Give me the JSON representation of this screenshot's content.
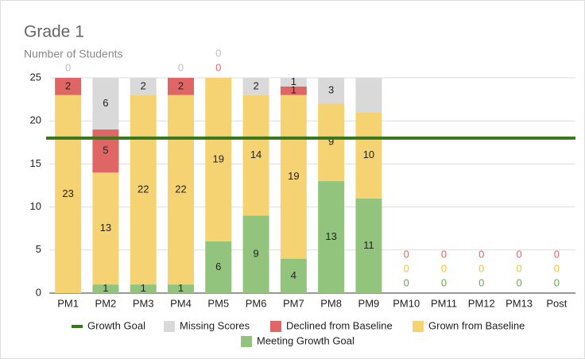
{
  "chart_data": {
    "type": "stacked_bar",
    "title": "Grade 1",
    "subtitle": "Number of Students",
    "categories": [
      "PM1",
      "PM2",
      "PM3",
      "PM4",
      "PM5",
      "PM6",
      "PM7",
      "PM8",
      "PM9",
      "PM10",
      "PM11",
      "PM12",
      "PM13",
      "Post"
    ],
    "series": [
      {
        "name": "Meeting Growth Goal",
        "color": "#93c47d",
        "label_color": "#6aa84f",
        "values": [
          0,
          1,
          1,
          1,
          6,
          9,
          4,
          13,
          11,
          0,
          0,
          0,
          0,
          0
        ]
      },
      {
        "name": "Grown from Baseline",
        "color": "#f6d372",
        "label_color": "#f1c232",
        "values": [
          23,
          13,
          22,
          22,
          19,
          14,
          19,
          9,
          10,
          0,
          0,
          0,
          0,
          0
        ]
      },
      {
        "name": "Declined from Baseline",
        "color": "#e06666",
        "label_color": "#e06666",
        "values": [
          2,
          5,
          0,
          2,
          0,
          0,
          1,
          0,
          0,
          0,
          0,
          0,
          0,
          0
        ]
      },
      {
        "name": "Missing Scores",
        "color": "#d9d9d9",
        "label_color": "#bdbdbd",
        "values": [
          0,
          6,
          2,
          0,
          0,
          2,
          1,
          3,
          4,
          0,
          0,
          0,
          0,
          0
        ],
        "value_labels": [
          "0",
          "6",
          "2",
          "0",
          "0",
          "2",
          "1",
          "3",
          null,
          null,
          null,
          null,
          null,
          null
        ]
      }
    ],
    "goal": {
      "name": "Growth Goal",
      "color": "#38761d",
      "value": 18
    },
    "ylim": [
      0,
      25
    ],
    "yticks": [
      0,
      5,
      10,
      15,
      20,
      25
    ],
    "grid": true
  }
}
